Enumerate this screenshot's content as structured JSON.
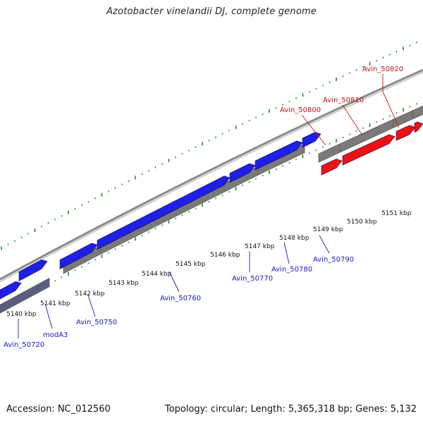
{
  "title": "Azotobacter vinelandii DJ, complete genome",
  "footer": {
    "accession": "Accession: NC_012560",
    "topology": "Topology: circular; Length: 5,365,318 bp; Genes: 5,132"
  },
  "colors": {
    "forward_cds": "#1f1fe6",
    "forward_cds_dim": "#3a3a9a",
    "gene_bar": "#7a7a7a",
    "highlight": "#ee1111",
    "tick": "#1e8a1e",
    "backbone": "#8c8c8c",
    "blue_label": "#1a1ab8",
    "red_label": "#cc1111"
  },
  "scale": {
    "unit": "kbp",
    "labels": [
      "5140 kbp",
      "5141 kbp",
      "5142 kbp",
      "5143 kbp",
      "5144 kbp",
      "5145 kbp",
      "5146 kbp",
      "5147 kbp",
      "5148 kbp",
      "5149 kbp",
      "5150 kbp",
      "5151 kbp"
    ]
  },
  "genes": {
    "blue": [
      "Avin_50720",
      "modA3",
      "Avin_50750",
      "Avin_50760",
      "Avin_50770",
      "Avin_50780",
      "Avin_50790"
    ],
    "red": [
      "Avin_50800",
      "Avin_50810",
      "Avin_50820"
    ]
  }
}
